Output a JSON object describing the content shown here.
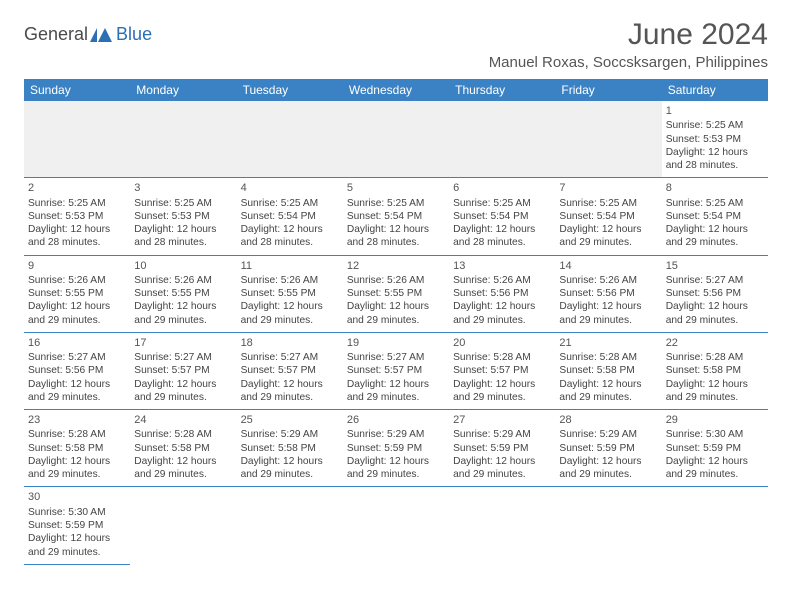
{
  "brand": {
    "part1": "General",
    "part2": "Blue"
  },
  "title": "June 2024",
  "location": "Manuel Roxas, Soccsksargen, Philippines",
  "colors": {
    "header_bg": "#3b82c4",
    "header_text": "#ffffff",
    "border": "#3b82c4",
    "text": "#444444",
    "brand_gray": "#4a4a4a",
    "brand_blue": "#2d6fb5"
  },
  "weekdays": [
    "Sunday",
    "Monday",
    "Tuesday",
    "Wednesday",
    "Thursday",
    "Friday",
    "Saturday"
  ],
  "weeks": [
    [
      null,
      null,
      null,
      null,
      null,
      null,
      {
        "d": "1",
        "sr": "5:25 AM",
        "ss": "5:53 PM",
        "dh": "12",
        "dm": "28"
      }
    ],
    [
      {
        "d": "2",
        "sr": "5:25 AM",
        "ss": "5:53 PM",
        "dh": "12",
        "dm": "28"
      },
      {
        "d": "3",
        "sr": "5:25 AM",
        "ss": "5:53 PM",
        "dh": "12",
        "dm": "28"
      },
      {
        "d": "4",
        "sr": "5:25 AM",
        "ss": "5:54 PM",
        "dh": "12",
        "dm": "28"
      },
      {
        "d": "5",
        "sr": "5:25 AM",
        "ss": "5:54 PM",
        "dh": "12",
        "dm": "28"
      },
      {
        "d": "6",
        "sr": "5:25 AM",
        "ss": "5:54 PM",
        "dh": "12",
        "dm": "28"
      },
      {
        "d": "7",
        "sr": "5:25 AM",
        "ss": "5:54 PM",
        "dh": "12",
        "dm": "29"
      },
      {
        "d": "8",
        "sr": "5:25 AM",
        "ss": "5:54 PM",
        "dh": "12",
        "dm": "29"
      }
    ],
    [
      {
        "d": "9",
        "sr": "5:26 AM",
        "ss": "5:55 PM",
        "dh": "12",
        "dm": "29"
      },
      {
        "d": "10",
        "sr": "5:26 AM",
        "ss": "5:55 PM",
        "dh": "12",
        "dm": "29"
      },
      {
        "d": "11",
        "sr": "5:26 AM",
        "ss": "5:55 PM",
        "dh": "12",
        "dm": "29"
      },
      {
        "d": "12",
        "sr": "5:26 AM",
        "ss": "5:55 PM",
        "dh": "12",
        "dm": "29"
      },
      {
        "d": "13",
        "sr": "5:26 AM",
        "ss": "5:56 PM",
        "dh": "12",
        "dm": "29"
      },
      {
        "d": "14",
        "sr": "5:26 AM",
        "ss": "5:56 PM",
        "dh": "12",
        "dm": "29"
      },
      {
        "d": "15",
        "sr": "5:27 AM",
        "ss": "5:56 PM",
        "dh": "12",
        "dm": "29"
      }
    ],
    [
      {
        "d": "16",
        "sr": "5:27 AM",
        "ss": "5:56 PM",
        "dh": "12",
        "dm": "29"
      },
      {
        "d": "17",
        "sr": "5:27 AM",
        "ss": "5:57 PM",
        "dh": "12",
        "dm": "29"
      },
      {
        "d": "18",
        "sr": "5:27 AM",
        "ss": "5:57 PM",
        "dh": "12",
        "dm": "29"
      },
      {
        "d": "19",
        "sr": "5:27 AM",
        "ss": "5:57 PM",
        "dh": "12",
        "dm": "29"
      },
      {
        "d": "20",
        "sr": "5:28 AM",
        "ss": "5:57 PM",
        "dh": "12",
        "dm": "29"
      },
      {
        "d": "21",
        "sr": "5:28 AM",
        "ss": "5:58 PM",
        "dh": "12",
        "dm": "29"
      },
      {
        "d": "22",
        "sr": "5:28 AM",
        "ss": "5:58 PM",
        "dh": "12",
        "dm": "29"
      }
    ],
    [
      {
        "d": "23",
        "sr": "5:28 AM",
        "ss": "5:58 PM",
        "dh": "12",
        "dm": "29"
      },
      {
        "d": "24",
        "sr": "5:28 AM",
        "ss": "5:58 PM",
        "dh": "12",
        "dm": "29"
      },
      {
        "d": "25",
        "sr": "5:29 AM",
        "ss": "5:58 PM",
        "dh": "12",
        "dm": "29"
      },
      {
        "d": "26",
        "sr": "5:29 AM",
        "ss": "5:59 PM",
        "dh": "12",
        "dm": "29"
      },
      {
        "d": "27",
        "sr": "5:29 AM",
        "ss": "5:59 PM",
        "dh": "12",
        "dm": "29"
      },
      {
        "d": "28",
        "sr": "5:29 AM",
        "ss": "5:59 PM",
        "dh": "12",
        "dm": "29"
      },
      {
        "d": "29",
        "sr": "5:30 AM",
        "ss": "5:59 PM",
        "dh": "12",
        "dm": "29"
      }
    ],
    [
      {
        "d": "30",
        "sr": "5:30 AM",
        "ss": "5:59 PM",
        "dh": "12",
        "dm": "29"
      },
      null,
      null,
      null,
      null,
      null,
      null
    ]
  ],
  "labels": {
    "sunrise": "Sunrise:",
    "sunset": "Sunset:",
    "daylight": "Daylight:",
    "hours": "hours",
    "and": "and",
    "minutes": "minutes."
  }
}
